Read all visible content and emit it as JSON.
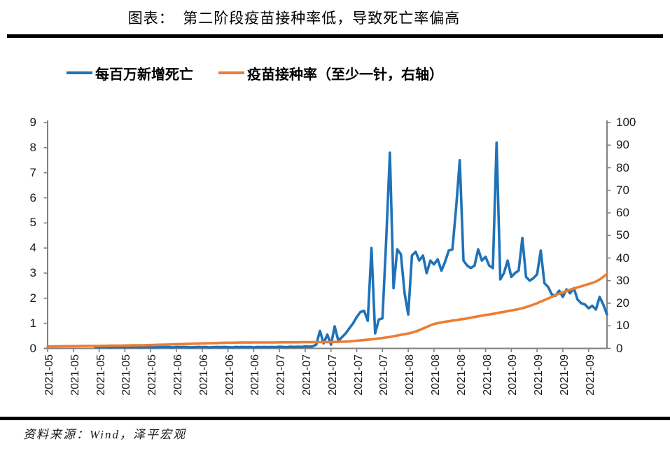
{
  "title": "图表：  第二阶段疫苗接种率低，导致死亡率偏高",
  "source_note": "资料来源：Wind，泽平宏观",
  "colors": {
    "deaths_line": "#1F72B8",
    "vaccination_line": "#ED7D31",
    "axis": "#808080",
    "rule": "#000000"
  },
  "chart_data": {
    "type": "line",
    "title": "第二阶段疫苗接种率低，导致死亡率偏高",
    "x_start_date": "2021-05-01",
    "x_frequency": "daily",
    "x_tick_labels": [
      "2021-05",
      "2021-05",
      "2021-05",
      "2021-05",
      "2021-05",
      "2021-06",
      "2021-06",
      "2021-06",
      "2021-06",
      "2021-07",
      "2021-07",
      "2021-07",
      "2021-07",
      "2021-07",
      "2021-08",
      "2021-08",
      "2021-08",
      "2021-08",
      "2021-09",
      "2021-09",
      "2021-09",
      "2021-09"
    ],
    "x_tick_interval_days": 7,
    "left_axis_ticks": [
      "9",
      "8",
      "7",
      "6",
      "5",
      "4",
      "3",
      "2",
      "1",
      "0"
    ],
    "right_axis_ticks": [
      "100",
      "90",
      "80",
      "70",
      "60",
      "50",
      "40",
      "30",
      "20",
      "10",
      "0"
    ],
    "left_ylim": [
      0,
      9
    ],
    "right_ylim": [
      0,
      100
    ],
    "grid": false,
    "legend_position": "top",
    "series": [
      {
        "name": "每百万新增死亡",
        "axis": "left",
        "color": "#1F72B8",
        "values": [
          null,
          null,
          null,
          null,
          null,
          null,
          null,
          null,
          null,
          null,
          null,
          null,
          null,
          0.05,
          0.04,
          0.06,
          0.05,
          0.04,
          0.05,
          0.06,
          0.05,
          0.04,
          0.05,
          0.05,
          0.06,
          0.04,
          0.05,
          0.06,
          0.05,
          0.04,
          0.05,
          0.05,
          0.06,
          0.05,
          0.04,
          0.06,
          0.05,
          0.06,
          0.05,
          0.04,
          0.05,
          0.06,
          0.05,
          0.06,
          0.04,
          0.05,
          0.06,
          0.05,
          0.06,
          0.05,
          0.04,
          0.06,
          0.05,
          0.06,
          0.05,
          0.06,
          0.04,
          0.06,
          0.05,
          0.06,
          0.05,
          0.06,
          0.05,
          0.07,
          0.06,
          0.05,
          0.07,
          0.06,
          0.07,
          0.06,
          0.08,
          0.07,
          0.08,
          0.15,
          0.7,
          0.2,
          0.55,
          0.15,
          0.88,
          0.3,
          0.45,
          0.6,
          0.8,
          1.0,
          1.25,
          1.45,
          1.5,
          1.1,
          4.0,
          0.6,
          1.15,
          1.2,
          4.3,
          7.8,
          2.4,
          3.95,
          3.75,
          2.2,
          1.35,
          3.7,
          3.85,
          3.5,
          3.7,
          3.0,
          3.5,
          3.35,
          3.55,
          3.1,
          3.45,
          3.9,
          3.95,
          5.6,
          7.5,
          3.5,
          3.3,
          3.2,
          3.3,
          3.95,
          3.5,
          3.65,
          3.3,
          3.2,
          8.2,
          2.75,
          3.0,
          3.5,
          2.85,
          3.0,
          3.1,
          4.4,
          2.85,
          2.7,
          2.8,
          2.95,
          3.9,
          2.6,
          2.45,
          2.15,
          2.1,
          2.3,
          2.05,
          2.35,
          2.2,
          2.4,
          1.95,
          1.8,
          1.75,
          1.6,
          1.7,
          1.55,
          2.05,
          1.75,
          1.35
        ]
      },
      {
        "name": "疫苗接种率（至少一针，右轴）",
        "axis": "right",
        "color": "#ED7D31",
        "values": [
          0.9,
          0.9,
          0.9,
          0.95,
          0.95,
          1.0,
          1.0,
          1.0,
          1.0,
          1.05,
          1.05,
          1.1,
          1.1,
          1.1,
          1.1,
          1.15,
          1.15,
          1.2,
          1.2,
          1.25,
          1.25,
          1.3,
          1.3,
          1.35,
          1.35,
          1.4,
          1.4,
          1.45,
          1.5,
          1.55,
          1.6,
          1.65,
          1.7,
          1.75,
          1.8,
          1.85,
          1.9,
          1.95,
          2.0,
          2.05,
          2.1,
          2.15,
          2.2,
          2.25,
          2.3,
          2.35,
          2.4,
          2.45,
          2.5,
          2.5,
          2.55,
          2.55,
          2.6,
          2.6,
          2.6,
          2.6,
          2.65,
          2.65,
          2.65,
          2.65,
          2.65,
          2.65,
          2.65,
          2.7,
          2.7,
          2.7,
          2.7,
          2.7,
          2.7,
          2.75,
          2.75,
          2.75,
          2.75,
          2.75,
          2.8,
          2.8,
          2.8,
          2.85,
          2.85,
          2.9,
          2.95,
          3.0,
          3.1,
          3.25,
          3.4,
          3.55,
          3.7,
          3.85,
          4.0,
          4.2,
          4.4,
          4.6,
          4.85,
          5.1,
          5.4,
          5.7,
          6.0,
          6.3,
          6.6,
          7.0,
          7.5,
          8.1,
          8.8,
          9.5,
          10.2,
          10.8,
          11.2,
          11.5,
          11.8,
          12.0,
          12.3,
          12.5,
          12.8,
          13.0,
          13.3,
          13.6,
          13.9,
          14.2,
          14.5,
          14.8,
          15.0,
          15.3,
          15.6,
          15.9,
          16.2,
          16.5,
          16.8,
          17.1,
          17.4,
          17.8,
          18.3,
          18.8,
          19.4,
          20.0,
          20.7,
          21.4,
          22.1,
          22.8,
          23.6,
          24.2,
          24.8,
          25.4,
          26.0,
          26.5,
          27.0,
          27.5,
          28.0,
          28.5,
          29.0,
          29.6,
          30.5,
          31.7,
          33.0
        ]
      }
    ]
  }
}
